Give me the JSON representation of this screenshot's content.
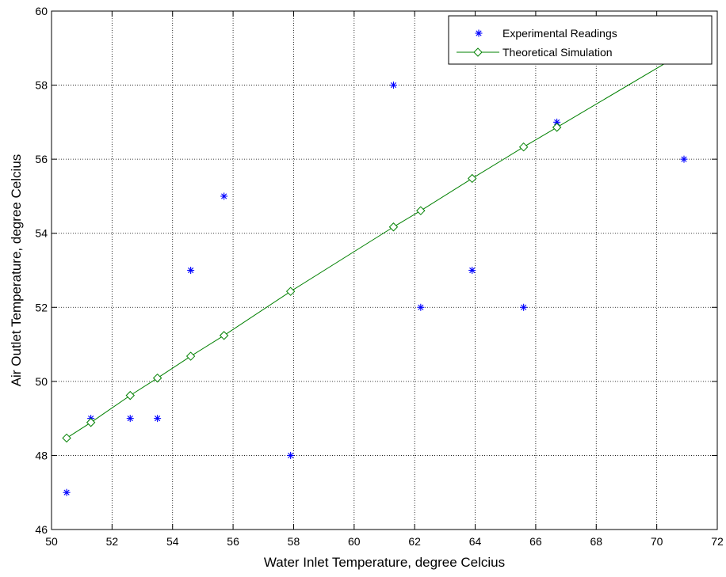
{
  "chart_data": {
    "type": "scatter",
    "xlabel": "Water Inlet Temperature, degree Celcius",
    "ylabel": "Air Outlet Temperature, degree Celcius",
    "xlim": [
      50,
      72
    ],
    "ylim": [
      46,
      60
    ],
    "xticks": [
      50,
      52,
      54,
      56,
      58,
      60,
      62,
      64,
      66,
      68,
      70,
      72
    ],
    "yticks": [
      46,
      48,
      50,
      52,
      54,
      56,
      58,
      60
    ],
    "grid": true,
    "legend_position": "top-right",
    "series": [
      {
        "name": "Experimental Readings",
        "type": "scatter",
        "marker": "asterisk",
        "color": "#0000ff",
        "points": [
          {
            "x": 50.5,
            "y": 47
          },
          {
            "x": 51.3,
            "y": 49
          },
          {
            "x": 52.6,
            "y": 49
          },
          {
            "x": 53.5,
            "y": 49
          },
          {
            "x": 54.6,
            "y": 53
          },
          {
            "x": 55.7,
            "y": 55
          },
          {
            "x": 57.9,
            "y": 48
          },
          {
            "x": 61.3,
            "y": 58
          },
          {
            "x": 62.2,
            "y": 52
          },
          {
            "x": 63.9,
            "y": 53
          },
          {
            "x": 65.6,
            "y": 52
          },
          {
            "x": 66.7,
            "y": 57
          },
          {
            "x": 70.9,
            "y": 56
          }
        ]
      },
      {
        "name": "Theoretical Simulation",
        "type": "line",
        "marker": "diamond",
        "color": "#008000",
        "points": [
          {
            "x": 50.5,
            "y": 48.47
          },
          {
            "x": 51.3,
            "y": 48.89
          },
          {
            "x": 52.6,
            "y": 49.62
          },
          {
            "x": 53.5,
            "y": 50.09
          },
          {
            "x": 54.6,
            "y": 50.68
          },
          {
            "x": 55.7,
            "y": 51.24
          },
          {
            "x": 57.9,
            "y": 52.43
          },
          {
            "x": 61.3,
            "y": 54.17
          },
          {
            "x": 62.2,
            "y": 54.61
          },
          {
            "x": 63.9,
            "y": 55.48
          },
          {
            "x": 65.6,
            "y": 56.33
          },
          {
            "x": 66.7,
            "y": 56.86
          },
          {
            "x": 70.9,
            "y": 58.89
          }
        ]
      }
    ]
  }
}
